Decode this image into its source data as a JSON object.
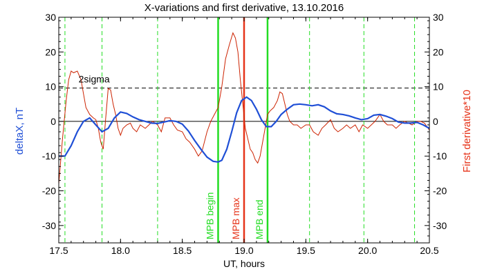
{
  "chart_data": {
    "type": "line",
    "title": "X-variations and first derivative, 13.10.2016",
    "xlabel": "UT, hours",
    "ylabel_left": "deltaX, nT",
    "ylabel_right": "First derivative*10",
    "xlim": [
      17.5,
      20.5
    ],
    "ylim": [
      -35,
      30
    ],
    "x_ticks": [
      17.5,
      18.0,
      18.5,
      19.0,
      19.5,
      20.0,
      20.5
    ],
    "y_ticks": [
      -30,
      -20,
      -10,
      0,
      10,
      20,
      30
    ],
    "colors": {
      "deltaX": "#1f4fd6",
      "derivative": "#cc2200",
      "mpb_bounds": "#22dd22",
      "mpb_max": "#e63319",
      "dashed_grid": "#22dd22"
    },
    "threshold": {
      "label": "2sigma",
      "value": 9.6
    },
    "zero_line": 0,
    "vertical_dashed_x": [
      17.55,
      17.85,
      18.3,
      19.53,
      19.97,
      20.38
    ],
    "mpb_lines": [
      {
        "label": "MPB begin",
        "x": 18.79,
        "color": "#22dd22"
      },
      {
        "label": "MPB max",
        "x": 19.0,
        "color": "#e63319"
      },
      {
        "label": "MPB end",
        "x": 19.19,
        "color": "#22dd22"
      }
    ],
    "series": [
      {
        "name": "deltaX",
        "x": [
          17.5,
          17.55,
          17.6,
          17.65,
          17.7,
          17.75,
          17.8,
          17.85,
          17.9,
          17.95,
          18.0,
          18.05,
          18.1,
          18.15,
          18.2,
          18.25,
          18.3,
          18.35,
          18.4,
          18.45,
          18.5,
          18.55,
          18.6,
          18.65,
          18.7,
          18.75,
          18.79,
          18.82,
          18.86,
          18.9,
          18.94,
          18.98,
          19.02,
          19.06,
          19.1,
          19.14,
          19.18,
          19.22,
          19.26,
          19.3,
          19.35,
          19.4,
          19.45,
          19.5,
          19.55,
          19.6,
          19.65,
          19.7,
          19.75,
          19.8,
          19.85,
          19.9,
          19.95,
          20.0,
          20.05,
          20.1,
          20.15,
          20.2,
          20.25,
          20.3,
          20.35,
          20.4,
          20.45,
          20.5
        ],
        "y": [
          -10,
          -10,
          -7,
          -3,
          0,
          1,
          -1,
          -3,
          -2,
          1,
          2.7,
          2.3,
          1.3,
          0.5,
          0,
          -0.5,
          -0.6,
          -0.2,
          0.2,
          0,
          -0.8,
          -2.8,
          -5.5,
          -8,
          -10.3,
          -11.5,
          -11.7,
          -11.2,
          -8,
          -3,
          2.5,
          6,
          7,
          6,
          3.5,
          0.5,
          -1.5,
          -1.5,
          0,
          2,
          3.5,
          4.8,
          5,
          4.8,
          4.5,
          4.8,
          4.2,
          3,
          2.2,
          2,
          1.6,
          1,
          0.5,
          0.8,
          1.8,
          2,
          1.5,
          0.8,
          -0.2,
          -0.5,
          -0.5,
          -0.3,
          -1,
          -2
        ]
      },
      {
        "name": "First derivative*10",
        "x": [
          17.5,
          17.53,
          17.56,
          17.58,
          17.6,
          17.62,
          17.65,
          17.68,
          17.7,
          17.72,
          17.75,
          17.78,
          17.8,
          17.82,
          17.84,
          17.86,
          17.88,
          17.9,
          17.92,
          17.94,
          17.96,
          17.98,
          18.0,
          18.02,
          18.05,
          18.08,
          18.1,
          18.13,
          18.16,
          18.2,
          18.23,
          18.26,
          18.3,
          18.33,
          18.36,
          18.4,
          18.43,
          18.46,
          18.5,
          18.53,
          18.56,
          18.6,
          18.63,
          18.66,
          18.7,
          18.73,
          18.76,
          18.79,
          18.82,
          18.85,
          18.88,
          18.91,
          18.93,
          18.95,
          18.97,
          18.99,
          19.01,
          19.03,
          19.05,
          19.07,
          19.09,
          19.11,
          19.13,
          19.15,
          19.17,
          19.19,
          19.21,
          19.24,
          19.27,
          19.29,
          19.31,
          19.33,
          19.35,
          19.37,
          19.4,
          19.43,
          19.46,
          19.5,
          19.53,
          19.56,
          19.6,
          19.63,
          19.66,
          19.7,
          19.73,
          19.76,
          19.8,
          19.83,
          19.86,
          19.9,
          19.93,
          19.96,
          20.0,
          20.03,
          20.06,
          20.1,
          20.13,
          20.16,
          20.2,
          20.23,
          20.26,
          20.3,
          20.33,
          20.36,
          20.4,
          20.43,
          20.46,
          20.5
        ],
        "y": [
          -18,
          -5,
          6,
          12,
          14.5,
          14,
          14.5,
          12,
          8,
          4,
          2,
          1,
          0.5,
          -2,
          -6,
          -8,
          1,
          9.5,
          9,
          5,
          2,
          -2,
          -4,
          -2,
          -1,
          -0.5,
          -2,
          -3,
          -1,
          -2,
          -1,
          0,
          -1,
          -3,
          1,
          1,
          -1,
          -2.5,
          -3,
          -5,
          -6,
          -8,
          -10,
          -8.5,
          -3,
          0,
          2,
          4,
          10,
          18,
          22,
          25.5,
          24,
          20,
          12,
          5,
          -2,
          -5,
          -8,
          -9,
          -11,
          -12,
          -10,
          -6,
          -2,
          2,
          3,
          4,
          6,
          8.5,
          8,
          5,
          2,
          0,
          -1,
          -1,
          -2,
          -1,
          -1,
          -3,
          -4,
          -2,
          -1,
          0.5,
          -2,
          -3,
          -2,
          -1,
          -2,
          -1,
          -3,
          -1,
          -2,
          -1,
          0,
          2,
          0,
          -1,
          -1,
          -2,
          -1,
          0,
          -0.5,
          -1,
          0,
          0,
          -0.5,
          -2.5
        ]
      }
    ]
  }
}
